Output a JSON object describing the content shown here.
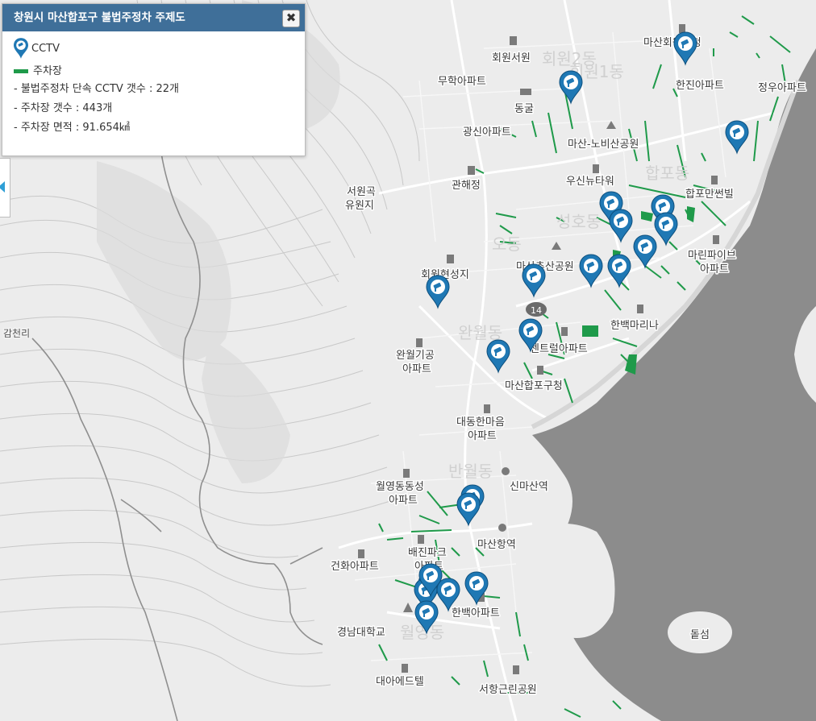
{
  "panel": {
    "title": "창원시 마산합포구 불법주정차 주제도",
    "close_label": "✖",
    "legend": [
      {
        "label": "CCTV",
        "icon": "cctv-marker-icon"
      },
      {
        "label": "주차장",
        "icon": "parking-line-icon"
      }
    ],
    "stats": [
      "- 불법주정차 단속 CCTV 갯수 : 22개",
      "- 주차장 갯수 : 443개",
      "- 주차장 면적 : 91.654㎢"
    ]
  },
  "colors": {
    "header": "#3f6f99",
    "cctv_marker": "#1f78b4",
    "parking": "#1f9a4a",
    "water": "#8a8a8a",
    "land": "#ececec"
  },
  "map": {
    "places": [
      "회원서원",
      "무학아파트",
      "동굴",
      "광신아파트",
      "마산-노비산공원",
      "마산회원구청",
      "한진아파트",
      "정우아파트",
      "관해정",
      "서원곡 유원지",
      "우신뉴타워",
      "합포만썬빌",
      "회원현성지",
      "마산추산공원",
      "마린파이브 아파트",
      "한백마리나",
      "완월기공 아파트",
      "센트럴아파트",
      "마산합포구청",
      "대동한마음 아파트",
      "신마산역",
      "월영동동성 아파트",
      "마산항역",
      "배진파크 아파트",
      "건화아파트",
      "한백아파트",
      "경남대학교",
      "대아에드텔",
      "서항근린공원",
      "돝섬",
      "감천리"
    ],
    "route_shield": "14",
    "area_names": [
      "회원1동",
      "회원2동",
      "합포동",
      "성호동",
      "오동",
      "완월동",
      "반월동",
      "월영동"
    ]
  }
}
